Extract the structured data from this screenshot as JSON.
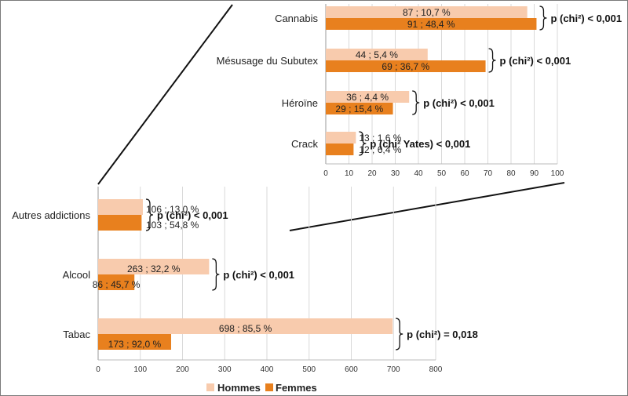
{
  "colors": {
    "hommes": "#f8cbad",
    "femmes": "#e8801e"
  },
  "legend": [
    "Hommes",
    "Femmes"
  ],
  "chart_data": [
    {
      "type": "bar",
      "orientation": "horizontal",
      "panel": "detail",
      "categories": [
        "Cannabis",
        "Mésusage du Subutex",
        "Héroïne",
        "Crack"
      ],
      "series": [
        {
          "name": "Hommes",
          "values": [
            87,
            44,
            36,
            13
          ],
          "labels": [
            "87 ; 10,7 %",
            "44 ; 5,4 %",
            "36 ; 4,4 %",
            "13 ; 1,6 %"
          ]
        },
        {
          "name": "Femmes",
          "values": [
            91,
            69,
            29,
            12
          ],
          "labels": [
            "91 ; 48,4 %",
            "69 ; 36,7 %",
            "29 ; 15,4 %",
            "12 ; 6,4 %"
          ]
        }
      ],
      "annotations": [
        "p (chi²) < 0,001",
        "p (chi²) < 0,001",
        "p (chi²) < 0,001",
        "p (chi² Yates) < 0,001"
      ],
      "xlim": [
        0,
        100
      ],
      "xticks": [
        0,
        10,
        20,
        30,
        40,
        50,
        60,
        70,
        80,
        90,
        100
      ],
      "grid": true
    },
    {
      "type": "bar",
      "orientation": "horizontal",
      "panel": "main",
      "categories": [
        "Autres addictions",
        "Alcool",
        "Tabac"
      ],
      "series": [
        {
          "name": "Hommes",
          "values": [
            106,
            263,
            698
          ],
          "labels": [
            "106 ; 13,0 %",
            "263 ; 32,2 %",
            "698 ; 85,5 %"
          ]
        },
        {
          "name": "Femmes",
          "values": [
            103,
            86,
            173
          ],
          "labels": [
            "103 ; 54,8 %",
            "86 ; 45,7 %",
            "173 ; 92,0 %"
          ]
        }
      ],
      "annotations": [
        "p (chi²) < 0,001",
        "p (chi²) < 0,001",
        "p (chi²) = 0,018"
      ],
      "xlim": [
        0,
        800
      ],
      "xticks": [
        0,
        100,
        200,
        300,
        400,
        500,
        600,
        700,
        800
      ],
      "grid": true,
      "legend_position": "bottom"
    }
  ]
}
